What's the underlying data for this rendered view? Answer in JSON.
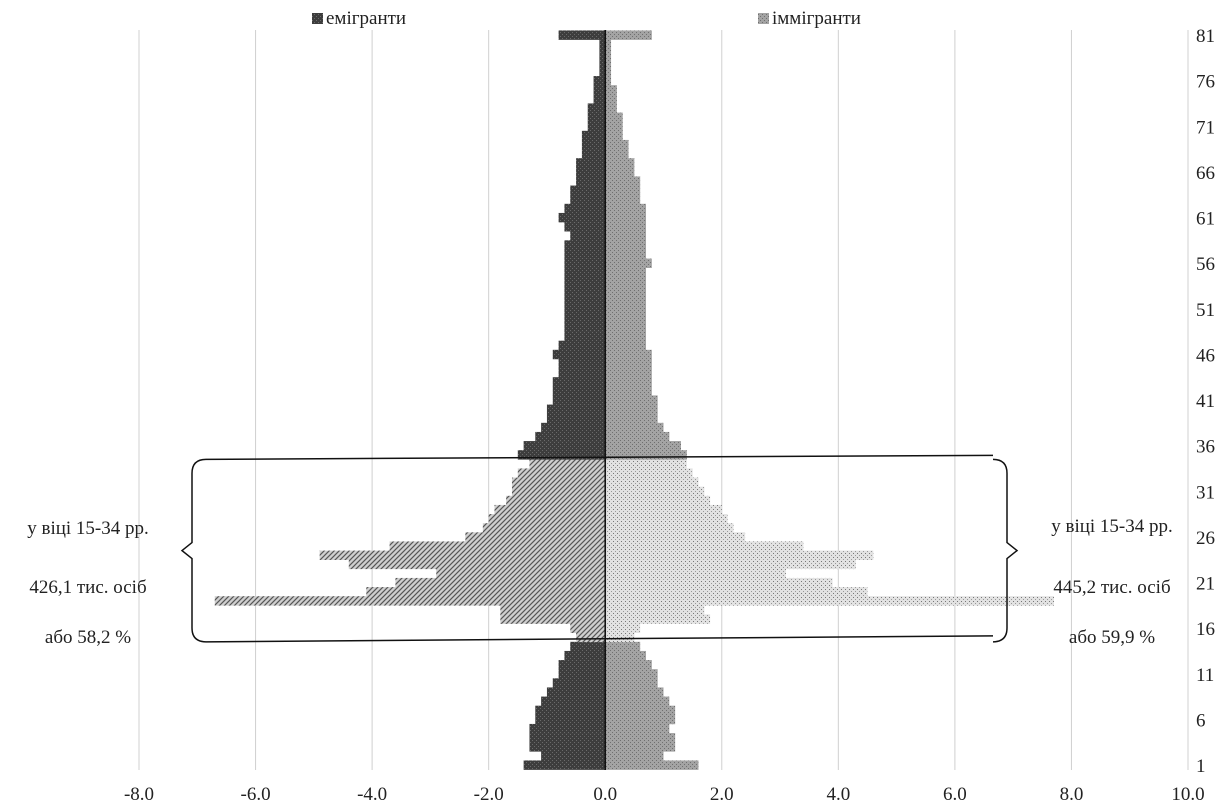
{
  "chart_data": {
    "type": "bar",
    "orientation": "horizontal",
    "layout": "population-pyramid",
    "title": "",
    "xlabel": "",
    "ylabel": "",
    "xlim": [
      -8,
      10
    ],
    "xticks": [
      -8,
      -6,
      -4,
      -2,
      0,
      2,
      4,
      6,
      8,
      10
    ],
    "xtick_labels": [
      "-8.0",
      "-6.0",
      "-4.0",
      "-2.0",
      "0.0",
      "2.0",
      "4.0",
      "6.0",
      "8.0",
      "10.0"
    ],
    "ylim": [
      1,
      81
    ],
    "yticks": [
      81,
      76,
      71,
      66,
      61,
      56,
      51,
      46,
      41,
      36,
      31,
      26,
      21,
      16,
      11,
      6,
      1
    ],
    "ytick_labels": [
      "81",
      "76",
      "71",
      "66",
      "61",
      "56",
      "51",
      "46",
      "41",
      "36",
      "31",
      "26",
      "21",
      "16",
      "11",
      "6",
      "1"
    ],
    "grid": "vertical",
    "legend_position": "top",
    "ages": [
      1,
      2,
      3,
      4,
      5,
      6,
      7,
      8,
      9,
      10,
      11,
      12,
      13,
      14,
      15,
      16,
      17,
      18,
      19,
      20,
      21,
      22,
      23,
      24,
      25,
      26,
      27,
      28,
      29,
      30,
      31,
      32,
      33,
      34,
      35,
      36,
      37,
      38,
      39,
      40,
      41,
      42,
      43,
      44,
      45,
      46,
      47,
      48,
      49,
      50,
      51,
      52,
      53,
      54,
      55,
      56,
      57,
      58,
      59,
      60,
      61,
      62,
      63,
      64,
      65,
      66,
      67,
      68,
      69,
      70,
      71,
      72,
      73,
      74,
      75,
      76,
      77,
      78,
      79,
      80,
      81
    ],
    "series": [
      {
        "name": "емігранти",
        "color": "#444444",
        "values": [
          -1.4,
          -1.1,
          -1.3,
          -1.3,
          -1.3,
          -1.2,
          -1.2,
          -1.1,
          -1.0,
          -0.9,
          -0.8,
          -0.8,
          -0.7,
          -0.6,
          -0.5,
          -0.6,
          -1.8,
          -1.8,
          -6.7,
          -4.1,
          -3.6,
          -2.9,
          -4.4,
          -4.9,
          -3.7,
          -2.4,
          -2.1,
          -2.0,
          -1.9,
          -1.7,
          -1.6,
          -1.6,
          -1.5,
          -1.3,
          -1.5,
          -1.4,
          -1.2,
          -1.1,
          -1.0,
          -1.0,
          -0.9,
          -0.9,
          -0.9,
          -0.8,
          -0.8,
          -0.9,
          -0.8,
          -0.7,
          -0.7,
          -0.7,
          -0.7,
          -0.7,
          -0.7,
          -0.7,
          -0.7,
          -0.7,
          -0.7,
          -0.7,
          -0.6,
          -0.7,
          -0.8,
          -0.7,
          -0.6,
          -0.6,
          -0.5,
          -0.5,
          -0.5,
          -0.4,
          -0.4,
          -0.4,
          -0.3,
          -0.3,
          -0.3,
          -0.2,
          -0.2,
          -0.2,
          -0.1,
          -0.1,
          -0.1,
          -0.1,
          -0.8
        ]
      },
      {
        "name": "іммігранти",
        "color": "#999999",
        "values": [
          1.6,
          1.0,
          1.2,
          1.2,
          1.1,
          1.2,
          1.2,
          1.1,
          1.0,
          0.9,
          0.9,
          0.8,
          0.7,
          0.6,
          0.5,
          0.6,
          1.8,
          1.7,
          7.7,
          4.5,
          3.9,
          3.1,
          4.3,
          4.6,
          3.4,
          2.4,
          2.2,
          2.1,
          2.0,
          1.8,
          1.7,
          1.6,
          1.5,
          1.4,
          1.4,
          1.3,
          1.1,
          1.0,
          0.9,
          0.9,
          0.9,
          0.8,
          0.8,
          0.8,
          0.8,
          0.8,
          0.7,
          0.7,
          0.7,
          0.7,
          0.7,
          0.7,
          0.7,
          0.7,
          0.7,
          0.8,
          0.7,
          0.7,
          0.7,
          0.7,
          0.7,
          0.7,
          0.6,
          0.6,
          0.6,
          0.5,
          0.5,
          0.4,
          0.4,
          0.3,
          0.3,
          0.3,
          0.2,
          0.2,
          0.2,
          0.1,
          0.1,
          0.1,
          0.1,
          0.1,
          0.8
        ]
      }
    ],
    "highlight_range": [
      15,
      34
    ],
    "annotations": {
      "left": [
        "у віці 15-34 рр.",
        "426,1 тис. осіб",
        "або 58,2 %"
      ],
      "right": [
        "у віці 15-34 рр.",
        "445,2 тис. осіб",
        "або 59,9 %"
      ]
    }
  }
}
